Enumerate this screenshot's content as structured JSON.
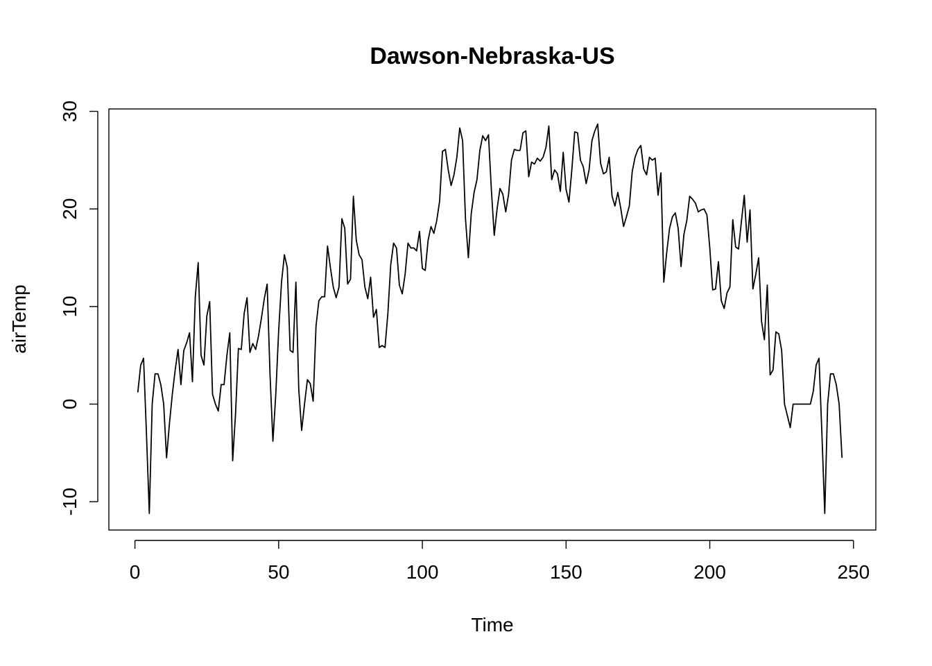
{
  "chart_data": {
    "type": "line",
    "title": "Dawson-Nebraska-US",
    "xlabel": "Time",
    "ylabel": "airTemp",
    "xlim": [
      0,
      250
    ],
    "ylim": [
      -11,
      30
    ],
    "xticks": [
      0,
      50,
      100,
      150,
      200,
      250
    ],
    "yticks": [
      -10,
      0,
      10,
      20,
      30
    ],
    "grid": false,
    "legend": "none",
    "line_color": "#000000",
    "series": [
      {
        "values": [
          1.2,
          4.0,
          4.7,
          -3.0,
          -11.2,
          0.0,
          3.1,
          3.1,
          2.0,
          0.0,
          -5.5,
          -2.0,
          1.0,
          3.5,
          5.6,
          2.0,
          5.5,
          6.3,
          7.3,
          2.3,
          11.0,
          14.5,
          5.0,
          4.0,
          9.0,
          10.5,
          1.0,
          0.0,
          -0.7,
          2.0,
          2.0,
          5.0,
          7.3,
          -5.8,
          -1.0,
          5.7,
          5.6,
          9.3,
          10.9,
          5.3,
          6.2,
          5.6,
          7.0,
          8.8,
          10.8,
          12.3,
          3.0,
          -3.8,
          1.0,
          7.5,
          12.5,
          15.3,
          14.0,
          5.5,
          5.3,
          12.5,
          1.5,
          -2.7,
          0.0,
          2.5,
          2.1,
          0.3,
          8.0,
          10.6,
          11.0,
          11.0,
          16.2,
          14.0,
          12.0,
          10.9,
          12.0,
          19.0,
          18.0,
          12.3,
          12.8,
          21.3,
          16.8,
          15.3,
          14.8,
          12.0,
          10.8,
          13.0,
          8.9,
          9.7,
          5.8,
          6.0,
          5.8,
          9.3,
          14.3,
          16.5,
          16.0,
          12.2,
          11.3,
          13.3,
          16.5,
          16.0,
          16.0,
          15.7,
          17.7,
          13.9,
          13.7,
          16.8,
          18.2,
          17.5,
          18.8,
          20.8,
          25.9,
          26.1,
          24.0,
          22.4,
          23.5,
          25.3,
          28.3,
          27.0,
          19.0,
          15.0,
          19.5,
          21.7,
          23.0,
          26.0,
          27.5,
          27.0,
          27.6,
          22.0,
          17.3,
          20.0,
          22.1,
          21.5,
          19.7,
          21.5,
          25.0,
          26.1,
          26.0,
          26.0,
          27.8,
          28.0,
          23.3,
          24.8,
          24.6,
          25.2,
          24.9,
          25.3,
          26.3,
          28.5,
          23.0,
          24.0,
          23.6,
          21.8,
          25.8,
          22.0,
          20.7,
          24.0,
          27.9,
          27.8,
          25.0,
          24.3,
          22.6,
          24.0,
          27.0,
          28.0,
          28.7,
          24.7,
          23.6,
          23.8,
          25.3,
          21.3,
          20.3,
          21.7,
          20.1,
          18.2,
          19.2,
          20.3,
          23.8,
          25.3,
          26.1,
          26.5,
          24.1,
          23.5,
          25.3,
          25.0,
          25.2,
          21.4,
          23.7,
          12.5,
          15.5,
          18.0,
          19.2,
          19.6,
          18.0,
          14.1,
          17.4,
          18.8,
          21.3,
          21.0,
          20.6,
          19.7,
          19.9,
          20.0,
          19.4,
          16.0,
          11.7,
          11.8,
          14.6,
          10.6,
          9.8,
          11.4,
          12.0,
          18.9,
          16.1,
          15.9,
          18.7,
          21.4,
          16.6,
          19.9,
          11.8,
          13.3,
          15.0,
          8.5,
          6.6,
          12.2,
          3.0,
          3.5,
          7.4,
          7.2,
          5.5,
          0.0,
          -1.2,
          -2.4,
          0.0,
          0.0,
          0.0,
          0.0,
          0.0,
          0.0,
          0.0,
          1.3,
          4.0,
          4.7,
          -3.0,
          -11.2,
          0.0,
          3.1,
          3.1,
          2.0,
          0.0,
          -5.5
        ]
      }
    ]
  }
}
